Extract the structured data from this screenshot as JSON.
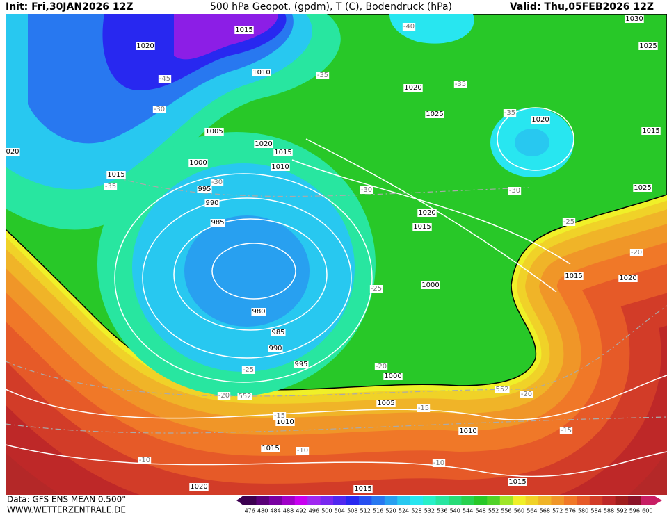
{
  "header": {
    "init": "Init: Fri,30JAN2026 12Z",
    "title": "500 hPa Geopot. (gpdm), T (C), Bodendruck (hPa)",
    "valid": "Valid: Thu,05FEB2026 12Z"
  },
  "isobar_labels": [
    "1015",
    "1020",
    "1010",
    "1005",
    "1020",
    "1015",
    "1000",
    "1010",
    "995",
    "990",
    "985",
    "980",
    "985",
    "990",
    "995",
    "1000",
    "1005",
    "1010",
    "1015",
    "1020",
    "1015",
    "1010",
    "1015",
    "1000",
    "1015",
    "1020",
    "1020",
    "1025",
    "1020",
    "1030",
    "1025",
    "1015",
    "1025",
    "1015",
    "1020",
    "020",
    "1015"
  ],
  "temperature_labels": [
    "-40",
    "-45",
    "-35",
    "-30",
    "-35",
    "-35",
    "-35",
    "-30",
    "-30",
    "-30",
    "-25",
    "-20",
    "-25",
    "-25",
    "-20",
    "-20",
    "-20",
    "-15",
    "-15",
    "-15",
    "-10",
    "-10",
    "-10",
    "552",
    "552"
  ],
  "legend": {
    "values": [
      476,
      480,
      484,
      488,
      492,
      496,
      500,
      504,
      508,
      512,
      516,
      520,
      524,
      528,
      532,
      536,
      540,
      544,
      548,
      552,
      556,
      560,
      564,
      568,
      572,
      576,
      580,
      584,
      588,
      592,
      596,
      600
    ],
    "colors": [
      "#3c0050",
      "#5a0078",
      "#7800a0",
      "#a000c8",
      "#c800f0",
      "#a028f0",
      "#7828f0",
      "#5028f0",
      "#2828f0",
      "#2850f0",
      "#2878f0",
      "#28a0f0",
      "#28c8f0",
      "#28e6f0",
      "#28f0c8",
      "#28e6a0",
      "#28dc78",
      "#28d250",
      "#28c828",
      "#50d228",
      "#a0e628",
      "#f0f028",
      "#f0d228",
      "#f0b428",
      "#f09628",
      "#f07828",
      "#e65a28",
      "#d23c28",
      "#be2828",
      "#a01e1e",
      "#8c1428",
      "#c81e64"
    ]
  },
  "footer": {
    "source": "Data: GFS ENS MEAN 0.500°",
    "site": "WWW.WETTERZENTRALE.DE"
  }
}
